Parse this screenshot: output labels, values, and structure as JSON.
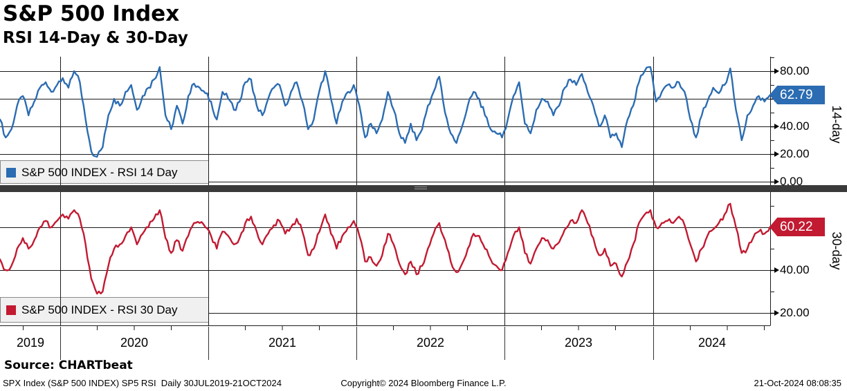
{
  "header": {
    "title": "S&P 500 Index",
    "subtitle": "RSI 14-Day & 30-Day"
  },
  "x_axis": {
    "years": [
      "2019",
      "2020",
      "2021",
      "2022",
      "2023",
      "2024"
    ]
  },
  "footer": {
    "source": "Source: CHARTbeat",
    "meta": "SPX Index (S&P 500 INDEX) SP5 RSI  Daily 30JUL2019-21OCT2024",
    "copyright": "Copyright© 2024 Bloomberg Finance L.P.",
    "timestamp": "21-Oct-2024 08:08:35"
  },
  "chart_data": [
    {
      "type": "line",
      "name": "S&P 500 INDEX - RSI 14 Day",
      "axis_label": "14-day",
      "color": "#2B6CB2",
      "last_value": "62.79",
      "x_start": "30JUL2019",
      "x_end": "21OCT2024",
      "ylim": [
        0,
        90
      ],
      "gridlines": [
        80,
        60,
        40,
        20,
        0
      ],
      "y_ticks": [
        {
          "label": "80.00",
          "value": 80
        },
        {
          "label": "40.00",
          "value": 40
        },
        {
          "label": "20.00",
          "value": 20
        },
        {
          "label": "0.00",
          "value": 0
        }
      ],
      "values": [
        45,
        32,
        38,
        55,
        62,
        48,
        58,
        68,
        72,
        65,
        70,
        75,
        68,
        80,
        72,
        45,
        22,
        18,
        25,
        48,
        60,
        55,
        65,
        70,
        52,
        62,
        68,
        74,
        83,
        48,
        38,
        55,
        42,
        62,
        71,
        68,
        64,
        58,
        45,
        65,
        60,
        52,
        58,
        72,
        74,
        55,
        48,
        60,
        68,
        70,
        55,
        65,
        72,
        58,
        38,
        45,
        66,
        80,
        60,
        42,
        58,
        65,
        70,
        55,
        32,
        42,
        35,
        45,
        65,
        52,
        35,
        28,
        42,
        30,
        38,
        55,
        65,
        76,
        50,
        35,
        28,
        40,
        55,
        65,
        60,
        48,
        38,
        35,
        32,
        45,
        62,
        72,
        42,
        35,
        52,
        60,
        58,
        48,
        55,
        68,
        74,
        70,
        78,
        65,
        55,
        40,
        48,
        32,
        35,
        25,
        45,
        55,
        72,
        80,
        83,
        58,
        65,
        70,
        68,
        72,
        65,
        45,
        32,
        48,
        58,
        68,
        64,
        70,
        82,
        52,
        30,
        48,
        55,
        62,
        58,
        62.79
      ]
    },
    {
      "type": "line",
      "name": "S&P 500 INDEX - RSI 30 Day",
      "axis_label": "30-day",
      "color": "#C11A31",
      "last_value": "60.22",
      "x_start": "30JUL2019",
      "x_end": "21OCT2024",
      "ylim": [
        15,
        77
      ],
      "gridlines": [
        60,
        40,
        20
      ],
      "y_ticks": [
        {
          "label": "40.00",
          "value": 40
        },
        {
          "label": "20.00",
          "value": 20
        }
      ],
      "values": [
        45,
        40,
        42,
        50,
        55,
        50,
        54,
        60,
        63,
        60,
        63,
        66,
        64,
        68,
        64,
        52,
        36,
        29,
        30,
        42,
        50,
        52,
        56,
        60,
        52,
        57,
        60,
        64,
        68,
        55,
        48,
        54,
        49,
        56,
        62,
        62,
        60,
        56,
        50,
        58,
        56,
        52,
        55,
        62,
        65,
        58,
        52,
        57,
        61,
        63,
        57,
        60,
        64,
        58,
        47,
        50,
        58,
        66,
        57,
        50,
        56,
        60,
        63,
        56,
        44,
        46,
        42,
        47,
        57,
        52,
        43,
        38,
        44,
        38,
        42,
        50,
        57,
        62,
        54,
        44,
        39,
        43,
        50,
        57,
        56,
        50,
        45,
        42,
        40,
        48,
        56,
        60,
        48,
        43,
        50,
        55,
        54,
        50,
        53,
        59,
        63,
        62,
        68,
        62,
        55,
        47,
        50,
        42,
        43,
        37,
        44,
        52,
        62,
        66,
        68,
        60,
        62,
        63,
        62,
        65,
        61,
        52,
        44,
        50,
        56,
        59,
        62,
        66,
        71,
        60,
        48,
        50,
        55,
        58,
        57,
        60.22
      ]
    }
  ]
}
